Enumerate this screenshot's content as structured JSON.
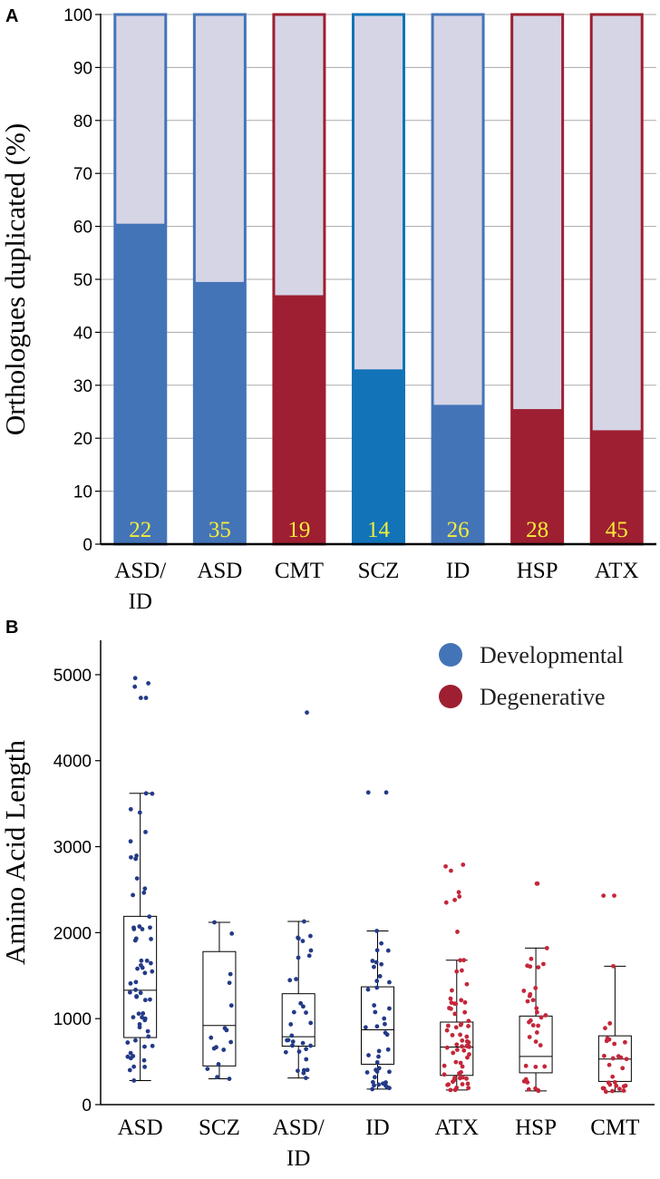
{
  "panels": {
    "a_label": "A",
    "b_label": "B"
  },
  "colors": {
    "developmental": "#4474b8",
    "developmental_bright": "#1273b8",
    "degenerative": "#9e1f31",
    "bar_background": "#d5d5e6",
    "dot_developmental": "#233a87",
    "dot_degenerative": "#c4263a",
    "grid": "#aaaaaa"
  },
  "chart_data": [
    {
      "type": "bar",
      "title": "",
      "xlabel": "",
      "ylabel": "Orthologues duplicated (%)",
      "ylim": [
        0,
        100
      ],
      "yticks": [
        0,
        10,
        20,
        30,
        40,
        50,
        60,
        70,
        80,
        90,
        100
      ],
      "grid": true,
      "bars": [
        {
          "line1": "ASD/",
          "line2": "ID",
          "value": 60.5,
          "count": "22",
          "group": "developmental"
        },
        {
          "line1": "ASD",
          "line2": "",
          "value": 49.5,
          "count": "35",
          "group": "developmental"
        },
        {
          "line1": "CMT",
          "line2": "",
          "value": 47,
          "count": "19",
          "group": "degenerative"
        },
        {
          "line1": "SCZ",
          "line2": "",
          "value": 33,
          "count": "14",
          "group": "developmental_bright"
        },
        {
          "line1": "ID",
          "line2": "",
          "value": 26.3,
          "count": "26",
          "group": "developmental"
        },
        {
          "line1": "HSP",
          "line2": "",
          "value": 25.5,
          "count": "28",
          "group": "degenerative"
        },
        {
          "line1": "ATX",
          "line2": "",
          "value": 21.5,
          "count": "45",
          "group": "degenerative"
        }
      ]
    },
    {
      "type": "box",
      "title": "",
      "xlabel": "",
      "ylabel": "Amino Acid Length",
      "ylim": [
        0,
        5400
      ],
      "yticks": [
        0,
        1000,
        2000,
        3000,
        4000,
        5000
      ],
      "legend": {
        "position": "top-right",
        "entries": [
          {
            "label": "Developmental",
            "group": "developmental"
          },
          {
            "label": "Degenerative",
            "group": "degenerative"
          }
        ]
      },
      "groups": [
        {
          "line1": "ASD",
          "line2": "",
          "group": "developmental",
          "whisker_low": 280,
          "q1": 780,
          "median": 1330,
          "q3": 2190,
          "whisker_high": 3620,
          "n": 60,
          "outliers": [
            4960,
            4900,
            4860,
            4730,
            4730
          ]
        },
        {
          "line1": "SCZ",
          "line2": "",
          "group": "developmental",
          "whisker_low": 300,
          "q1": 450,
          "median": 920,
          "q3": 1780,
          "whisker_high": 2120,
          "n": 14,
          "outliers": []
        },
        {
          "line1": "ASD/",
          "line2": "ID",
          "group": "developmental",
          "whisker_low": 310,
          "q1": 680,
          "median": 790,
          "q3": 1290,
          "whisker_high": 2130,
          "n": 30,
          "outliers": [
            4560
          ]
        },
        {
          "line1": "ID",
          "line2": "",
          "group": "developmental",
          "whisker_low": 180,
          "q1": 470,
          "median": 870,
          "q3": 1370,
          "whisker_high": 2020,
          "n": 40,
          "outliers": [
            3630,
            3630
          ]
        },
        {
          "line1": "ATX",
          "line2": "",
          "group": "degenerative",
          "whisker_low": 170,
          "q1": 340,
          "median": 670,
          "q3": 960,
          "whisker_high": 1680,
          "n": 60,
          "outliers": [
            2790,
            2770,
            2720,
            2470,
            2420,
            2380,
            2350,
            2010
          ]
        },
        {
          "line1": "HSP",
          "line2": "",
          "group": "degenerative",
          "whisker_low": 160,
          "q1": 370,
          "median": 560,
          "q3": 1030,
          "whisker_high": 1820,
          "n": 32,
          "outliers": [
            2570,
            2570
          ]
        },
        {
          "line1": "CMT",
          "line2": "",
          "group": "degenerative",
          "whisker_low": 150,
          "q1": 270,
          "median": 530,
          "q3": 800,
          "whisker_high": 1610,
          "n": 26,
          "outliers": [
            2430,
            2430
          ]
        }
      ]
    }
  ]
}
